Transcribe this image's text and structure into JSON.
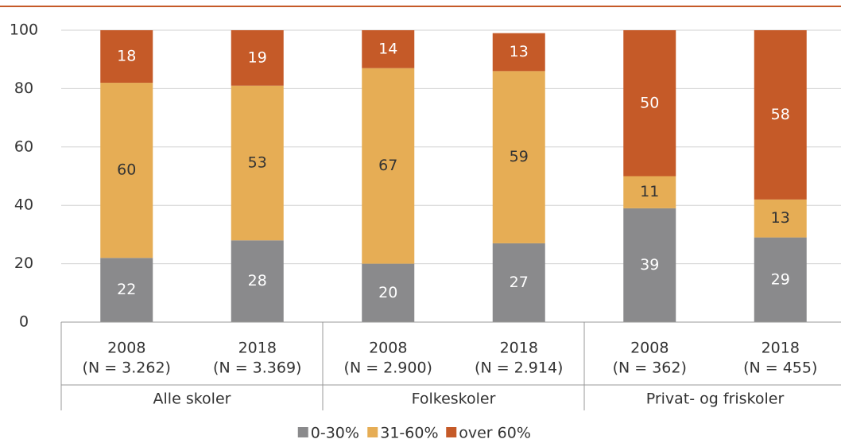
{
  "chart_data": {
    "type": "stacked_bar",
    "categories": [
      "2008",
      "2018",
      "2008",
      "2018",
      "2008",
      "2018"
    ],
    "sublabels": [
      "(N = 3.262)",
      "(N = 3.369)",
      "(N = 2.900)",
      "(N = 2.914)",
      "(N = 362)",
      "(N = 455)"
    ],
    "groups": [
      "Alle skoler",
      "Folkeskoler",
      "Privat- og friskoler"
    ],
    "series": [
      {
        "name": "0-30%",
        "color": "#8a8a8c",
        "label_color": "#ffffff",
        "values": [
          22,
          28,
          20,
          27,
          39,
          29
        ]
      },
      {
        "name": "31-60%",
        "color": "#e6ad55",
        "label_color": "#333333",
        "values": [
          60,
          53,
          67,
          59,
          11,
          13
        ]
      },
      {
        "name": "over 60%",
        "color": "#c55a28",
        "label_color": "#ffffff",
        "values": [
          18,
          19,
          14,
          13,
          50,
          58
        ]
      }
    ],
    "ylim": [
      0,
      100
    ],
    "yticks": [
      0,
      20,
      40,
      60,
      80,
      100
    ],
    "grid": true,
    "legend": "bottom"
  }
}
